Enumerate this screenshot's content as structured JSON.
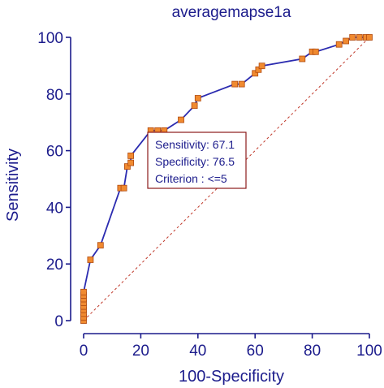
{
  "chart_data": {
    "type": "line",
    "title": "averagemapse1a",
    "xlabel": "100-Specificity",
    "ylabel": "Sensitivity",
    "xlim": [
      0,
      100
    ],
    "ylim": [
      0,
      100
    ],
    "x_ticks": [
      0,
      20,
      40,
      60,
      80,
      100
    ],
    "y_ticks": [
      0,
      20,
      40,
      60,
      80,
      100
    ],
    "grid": false,
    "diagonal_reference": true,
    "series": [
      {
        "points": [
          [
            0,
            0
          ],
          [
            0,
            1.2
          ],
          [
            0,
            2.5
          ],
          [
            0,
            3.8
          ],
          [
            0,
            5
          ],
          [
            0,
            6.3
          ],
          [
            0,
            7.6
          ],
          [
            0,
            8.9
          ],
          [
            0,
            10.1
          ],
          [
            2.4,
            21.5
          ],
          [
            5.9,
            26.6
          ],
          [
            12.9,
            46.8
          ],
          [
            14.1,
            46.8
          ],
          [
            15.3,
            54.4
          ],
          [
            16.5,
            55.7
          ],
          [
            16.5,
            58.2
          ],
          [
            23.5,
            67.1
          ],
          [
            25.9,
            67.1
          ],
          [
            28.2,
            67.1
          ],
          [
            34.1,
            70.9
          ],
          [
            38.8,
            75.9
          ],
          [
            40,
            78.5
          ],
          [
            52.9,
            83.5
          ],
          [
            55.3,
            83.5
          ],
          [
            60,
            87.3
          ],
          [
            61.2,
            88.6
          ],
          [
            62.4,
            89.9
          ],
          [
            76.5,
            92.4
          ],
          [
            80,
            94.9
          ],
          [
            81.2,
            94.9
          ],
          [
            89.4,
            97.5
          ],
          [
            91.8,
            98.7
          ],
          [
            94.1,
            100
          ],
          [
            96.5,
            100
          ],
          [
            98.8,
            100
          ],
          [
            100,
            100
          ]
        ]
      }
    ],
    "annotation": {
      "sensitivity": "Sensitivity: 67.1",
      "specificity": "Specificity: 76.5",
      "criterion": "Criterion : <=5"
    },
    "colors": {
      "axis": "#1c1c8c",
      "line": "#2b2bb0",
      "marker_fill": "#f08a30",
      "marker_stroke": "#b04a10",
      "diagonal": "#c0392b",
      "annotation_border": "#8b1a1a"
    }
  }
}
